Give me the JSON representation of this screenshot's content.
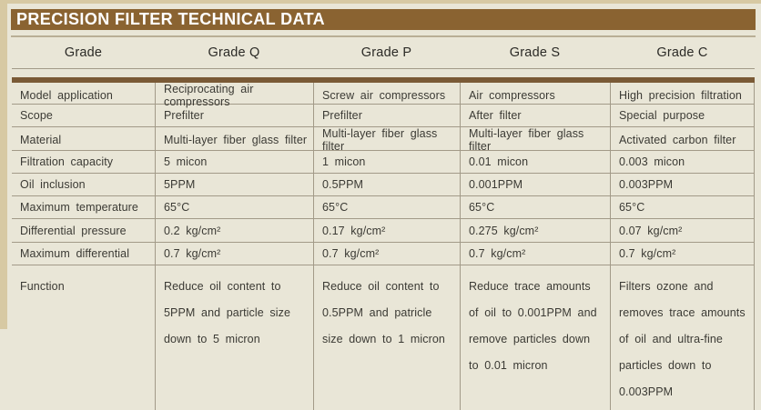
{
  "palette": {
    "page_background": "#e9e6d7",
    "edge_tan": "#d7c9a3",
    "title_brown": "#8a6331",
    "title_text": "#ffffff",
    "header_text": "#2b2a26",
    "rule_thick": "#7a5a36",
    "rule_thin": "#a29a88",
    "text": "#3b3a34"
  },
  "title": "PRECISION FILTER TECHNICAL DATA",
  "table": {
    "columns": [
      "Grade",
      "Grade Q",
      "Grade P",
      "Grade S",
      "Grade C"
    ],
    "rows": [
      {
        "label": "Model application",
        "values": [
          "Reciprocating air compressors",
          "Screw air compressors",
          "Air compressors",
          "High precision filtration"
        ]
      },
      {
        "label": "Scope",
        "values": [
          "Prefilter",
          "Prefilter",
          "After filter",
          "Special purpose"
        ]
      },
      {
        "label": "Material",
        "values": [
          "Multi-layer fiber glass filter",
          "Multi-layer fiber glass filter",
          "Multi-layer fiber glass filter",
          "Activated carbon filter"
        ]
      },
      {
        "label": "Filtration capacity",
        "values": [
          "5 micon",
          "1 micon",
          "0.01 micon",
          "0.003 micon"
        ]
      },
      {
        "label": "Oil inclusion",
        "values": [
          "5PPM",
          "0.5PPM",
          "0.001PPM",
          "0.003PPM"
        ]
      },
      {
        "label": "Maximum temperature",
        "values": [
          "65°C",
          "65°C",
          "65°C",
          "65°C"
        ]
      },
      {
        "label": "Differential pressure",
        "values": [
          "0.2 kg/cm²",
          "0.17 kg/cm²",
          "0.275 kg/cm²",
          "0.07 kg/cm²"
        ]
      },
      {
        "label": "Maximum differential",
        "values": [
          "0.7 kg/cm²",
          "0.7 kg/cm²",
          "0.7 kg/cm²",
          "0.7 kg/cm²"
        ]
      },
      {
        "label": "Function",
        "values": [
          "Reduce oil content to 5PPM and particle size down to 5 micron",
          "Reduce oil content to 0.5PPM and patricle size down to 1 micron",
          "Reduce trace amounts of oil to 0.001PPM and remove particles down to 0.01 micron",
          "Filters ozone and removes trace amounts of oil and ultra-fine particles down to 0.003PPM"
        ]
      }
    ]
  }
}
